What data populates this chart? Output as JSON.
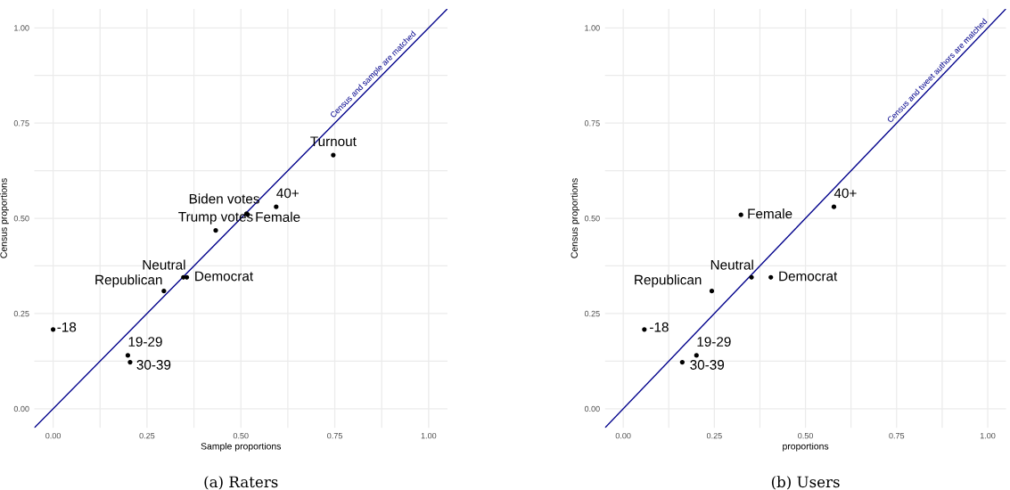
{
  "chart_data": [
    {
      "type": "scatter",
      "title": "(a) Raters",
      "xlabel": "Sample proportions",
      "ylabel": "Census proportions",
      "xlim": [
        -0.05,
        1.05
      ],
      "ylim": [
        -0.05,
        1.05
      ],
      "xticks": [
        {
          "value": 0,
          "label": "0.00"
        },
        {
          "value": 0.125,
          "label": null
        },
        {
          "value": 0.25,
          "label": "0.25"
        },
        {
          "value": 0.375,
          "label": null
        },
        {
          "value": 0.5,
          "label": "0.50"
        },
        {
          "value": 0.625,
          "label": null
        },
        {
          "value": 0.75,
          "label": "0.75"
        },
        {
          "value": 0.875,
          "label": null
        },
        {
          "value": 1,
          "label": "1.00"
        }
      ],
      "yticks": [
        {
          "value": 0,
          "label": "0.00"
        },
        {
          "value": 0.125,
          "label": null
        },
        {
          "value": 0.25,
          "label": "0.25"
        },
        {
          "value": 0.375,
          "label": null
        },
        {
          "value": 0.5,
          "label": "0.50"
        },
        {
          "value": 0.625,
          "label": null
        },
        {
          "value": 0.75,
          "label": "0.75"
        },
        {
          "value": 0.875,
          "label": null
        },
        {
          "value": 1,
          "label": "1.00"
        }
      ],
      "grid": true,
      "series": [
        {
          "marker": "circle",
          "color": "#000000",
          "x": [
            0.0,
            0.199,
            0.205,
            0.295,
            0.347,
            0.356,
            0.433,
            0.515,
            0.518,
            0.594,
            0.746
          ],
          "values": [
            0.208,
            0.14,
            0.122,
            0.309,
            0.345,
            0.345,
            0.468,
            0.512,
            0.51,
            0.53,
            0.666
          ]
        },
        {
          "type": "line",
          "color": "#00008b",
          "x": [
            -0.05,
            1.05
          ],
          "values": [
            -0.05,
            1.05
          ]
        }
      ],
      "annotations": [
        {
          "text": "-18",
          "x": 0.0,
          "y": 0.208
        },
        {
          "text": "19-29",
          "x": 0.199,
          "y": 0.14
        },
        {
          "text": "30-39",
          "x": 0.205,
          "y": 0.122
        },
        {
          "text": "Republican",
          "x": 0.295,
          "y": 0.309
        },
        {
          "text": "Neutral",
          "x": 0.347,
          "y": 0.345
        },
        {
          "text": "Democrat",
          "x": 0.356,
          "y": 0.345
        },
        {
          "text": "Trump votes",
          "x": 0.433,
          "y": 0.468
        },
        {
          "text": "Biden votes",
          "x": 0.515,
          "y": 0.512
        },
        {
          "text": "Female",
          "x": 0.518,
          "y": 0.51
        },
        {
          "text": "40+",
          "x": 0.594,
          "y": 0.53
        },
        {
          "text": "Turnout",
          "x": 0.746,
          "y": 0.666
        },
        {
          "text": "Census and sample are matched",
          "x": 0.86,
          "y": 0.86
        }
      ]
    },
    {
      "type": "scatter",
      "title": "(b) Users",
      "xlabel": "proportions",
      "ylabel": "Census proportions",
      "xlim": [
        -0.05,
        1.05
      ],
      "ylim": [
        -0.05,
        1.05
      ],
      "xticks": [
        {
          "value": 0,
          "label": "0.00"
        },
        {
          "value": 0.125,
          "label": null
        },
        {
          "value": 0.25,
          "label": "0.25"
        },
        {
          "value": 0.375,
          "label": null
        },
        {
          "value": 0.5,
          "label": "0.50"
        },
        {
          "value": 0.625,
          "label": null
        },
        {
          "value": 0.75,
          "label": "0.75"
        },
        {
          "value": 0.875,
          "label": null
        },
        {
          "value": 1,
          "label": "1.00"
        }
      ],
      "yticks": [
        {
          "value": 0,
          "label": "0.00"
        },
        {
          "value": 0.125,
          "label": null
        },
        {
          "value": 0.25,
          "label": "0.25"
        },
        {
          "value": 0.375,
          "label": null
        },
        {
          "value": 0.5,
          "label": "0.50"
        },
        {
          "value": 0.625,
          "label": null
        },
        {
          "value": 0.75,
          "label": "0.75"
        },
        {
          "value": 0.875,
          "label": null
        },
        {
          "value": 1,
          "label": "1.00"
        }
      ],
      "grid": true,
      "series": [
        {
          "marker": "circle",
          "color": "#000000",
          "x": [
            0.058,
            0.201,
            0.162,
            0.243,
            0.352,
            0.405,
            0.323,
            0.578
          ],
          "values": [
            0.208,
            0.14,
            0.122,
            0.309,
            0.345,
            0.345,
            0.509,
            0.53
          ]
        },
        {
          "type": "line",
          "color": "#00008b",
          "x": [
            -0.05,
            1.05
          ],
          "values": [
            -0.05,
            1.05
          ]
        }
      ],
      "annotations": [
        {
          "text": "-18",
          "x": 0.058,
          "y": 0.208
        },
        {
          "text": "19-29",
          "x": 0.201,
          "y": 0.14
        },
        {
          "text": "30-39",
          "x": 0.162,
          "y": 0.122
        },
        {
          "text": "Republican",
          "x": 0.243,
          "y": 0.309
        },
        {
          "text": "Neutral",
          "x": 0.352,
          "y": 0.345
        },
        {
          "text": "Democrat",
          "x": 0.405,
          "y": 0.345
        },
        {
          "text": "Female",
          "x": 0.323,
          "y": 0.509
        },
        {
          "text": "40+",
          "x": 0.578,
          "y": 0.53
        },
        {
          "text": "Census and tweet authors are matched",
          "x": 0.87,
          "y": 0.87
        }
      ]
    }
  ]
}
